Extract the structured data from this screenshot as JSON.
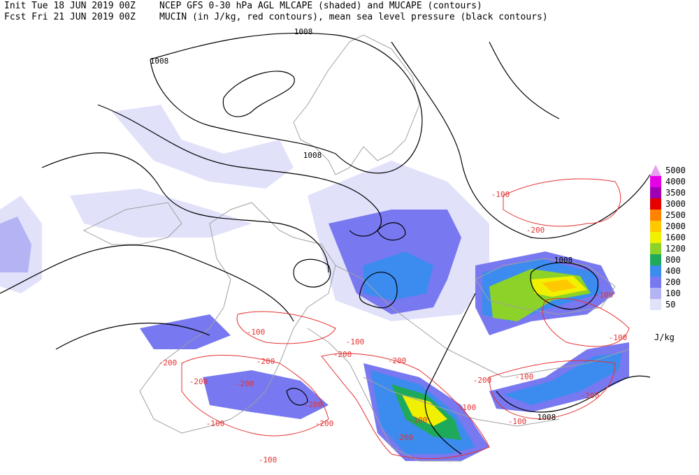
{
  "header": {
    "init": "Init  Tue 18 JUN 2019 00Z",
    "line1": "NCEP GFS 0-30 hPa AGL MLCAPE (shaded) and MUCAPE (contours)",
    "fcst": "Fcst Fri 21 JUN 2019 00Z",
    "line2": "MUCIN (in J/kg, red contours), mean sea level pressure (black contours)"
  },
  "legend": {
    "unit": "J/kg",
    "items": [
      {
        "label": "5000",
        "color": "#e6a0f0"
      },
      {
        "label": "4000",
        "color": "#e600e6"
      },
      {
        "label": "3500",
        "color": "#a000b4"
      },
      {
        "label": "3000",
        "color": "#e60000"
      },
      {
        "label": "2500",
        "color": "#ff8200"
      },
      {
        "label": "2000",
        "color": "#ffc800"
      },
      {
        "label": "1600",
        "color": "#f0f000"
      },
      {
        "label": "1200",
        "color": "#8cd228"
      },
      {
        "label": "800",
        "color": "#1eaa5a"
      },
      {
        "label": "400",
        "color": "#3c8cf0"
      },
      {
        "label": "200",
        "color": "#7878f0"
      },
      {
        "label": "100",
        "color": "#b4b4f5"
      },
      {
        "label": "50",
        "color": "#e1e1fa"
      }
    ]
  },
  "pressure_labels": [
    "1008",
    "1008",
    "1008",
    "1008",
    "1008"
  ],
  "cin_labels": [
    "-100",
    "-100",
    "-100",
    "-100",
    "-100",
    "-100",
    "-100",
    "-100",
    "-100",
    "-100",
    "-100",
    "-100",
    "-200",
    "-200",
    "-200",
    "-200",
    "-200",
    "-200",
    "-200",
    "-200",
    "-200",
    "-200",
    "-200"
  ]
}
